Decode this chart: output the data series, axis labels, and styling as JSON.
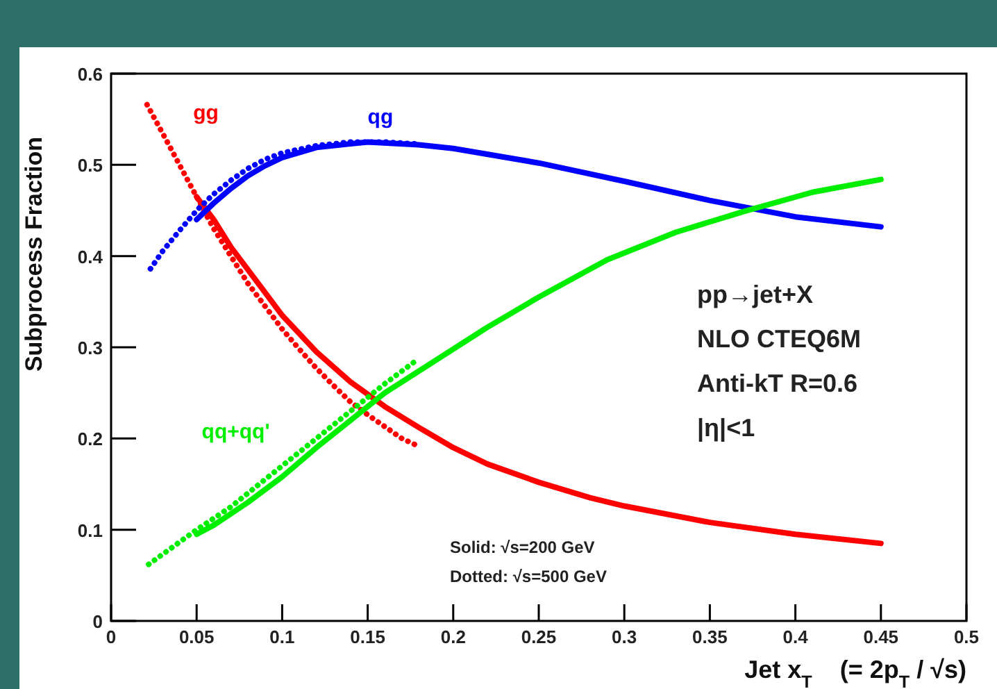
{
  "chart_data": {
    "type": "line",
    "xlabel": "Jet x$_{T}$    (= 2p$_{T}$ / √s)",
    "ylabel": "Subprocess Fraction",
    "xlim": [
      0,
      0.5
    ],
    "xticks": [
      0,
      0.05,
      0.1,
      0.15,
      0.2,
      0.25,
      0.3,
      0.35,
      0.4,
      0.45,
      0.5
    ],
    "ylim": [
      0,
      0.6
    ],
    "yticks": [
      0,
      0.1,
      0.2,
      0.3,
      0.4,
      0.5,
      0.6
    ],
    "grid": false,
    "marker": "none",
    "series": [
      {
        "name": "gg",
        "color": "#ff0000",
        "line_style": "solid",
        "x": [
          0.05,
          0.06,
          0.07,
          0.08,
          0.09,
          0.1,
          0.12,
          0.14,
          0.16,
          0.18,
          0.2,
          0.22,
          0.25,
          0.28,
          0.3,
          0.35,
          0.4,
          0.45
        ],
        "values": [
          0.465,
          0.44,
          0.41,
          0.385,
          0.36,
          0.335,
          0.295,
          0.262,
          0.235,
          0.212,
          0.19,
          0.172,
          0.152,
          0.135,
          0.126,
          0.108,
          0.095,
          0.085
        ]
      },
      {
        "color": "#ff0000",
        "line_style": "dotted",
        "x": [
          0.021,
          0.03,
          0.04,
          0.05,
          0.06,
          0.07,
          0.08,
          0.09,
          0.1,
          0.11,
          0.12,
          0.13,
          0.14,
          0.15,
          0.16,
          0.17,
          0.178
        ],
        "values": [
          0.566,
          0.535,
          0.5,
          0.465,
          0.43,
          0.4,
          0.37,
          0.345,
          0.32,
          0.298,
          0.277,
          0.258,
          0.24,
          0.226,
          0.213,
          0.2,
          0.193
        ]
      },
      {
        "name": "qg",
        "color": "#0000ff",
        "line_style": "solid",
        "x": [
          0.05,
          0.06,
          0.07,
          0.08,
          0.09,
          0.1,
          0.12,
          0.15,
          0.18,
          0.2,
          0.25,
          0.3,
          0.35,
          0.4,
          0.45
        ],
        "values": [
          0.44,
          0.458,
          0.474,
          0.488,
          0.499,
          0.508,
          0.519,
          0.525,
          0.522,
          0.518,
          0.502,
          0.482,
          0.461,
          0.443,
          0.432
        ]
      },
      {
        "color": "#0000ff",
        "line_style": "dotted",
        "x": [
          0.023,
          0.03,
          0.04,
          0.05,
          0.06,
          0.07,
          0.08,
          0.09,
          0.1,
          0.12,
          0.14,
          0.16,
          0.178
        ],
        "values": [
          0.386,
          0.405,
          0.428,
          0.45,
          0.468,
          0.483,
          0.496,
          0.506,
          0.513,
          0.521,
          0.525,
          0.525,
          0.523
        ]
      },
      {
        "name": "qq+qq'",
        "color": "#00ee00",
        "line_style": "solid",
        "x": [
          0.05,
          0.06,
          0.08,
          0.1,
          0.12,
          0.14,
          0.16,
          0.18,
          0.2,
          0.22,
          0.25,
          0.29,
          0.33,
          0.37,
          0.41,
          0.45
        ],
        "values": [
          0.095,
          0.105,
          0.13,
          0.158,
          0.19,
          0.22,
          0.25,
          0.274,
          0.298,
          0.322,
          0.355,
          0.396,
          0.426,
          0.449,
          0.47,
          0.484
        ]
      },
      {
        "color": "#00ee00",
        "line_style": "dotted",
        "x": [
          0.022,
          0.05,
          0.07,
          0.1,
          0.12,
          0.14,
          0.16,
          0.178
        ],
        "values": [
          0.062,
          0.1,
          0.125,
          0.17,
          0.2,
          0.23,
          0.26,
          0.285
        ]
      }
    ],
    "annotations": [
      "pp→jet+X",
      "NLO CTEQ6M",
      "Anti-kT R=0.6",
      "|η|<1",
      "Solid:    √s=200 GeV",
      "Dotted:  √s=500 GeV"
    ]
  }
}
